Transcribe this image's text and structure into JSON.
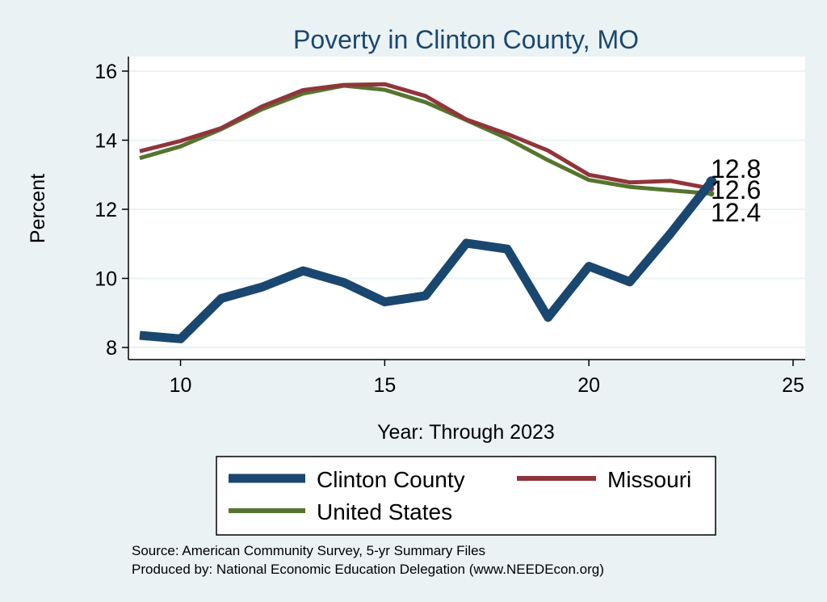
{
  "chart_data": {
    "type": "line",
    "title": "Poverty in Clinton County, MO",
    "xlabel": "Year: Through 2023",
    "ylabel": "Percent",
    "xlim": [
      9,
      25
    ],
    "ylim": [
      8,
      16
    ],
    "xticks": [
      10,
      15,
      20,
      25
    ],
    "yticks": [
      8,
      10,
      12,
      14,
      16
    ],
    "grid": true,
    "legend_position": "bottom",
    "x": [
      9,
      10,
      11,
      12,
      13,
      14,
      15,
      16,
      17,
      18,
      19,
      20,
      21,
      22,
      23
    ],
    "series": [
      {
        "name": "Clinton County",
        "color": "#1a476f",
        "values": [
          8.35,
          8.25,
          9.42,
          9.75,
          10.22,
          9.88,
          9.32,
          9.5,
          11.02,
          10.85,
          8.87,
          10.35,
          9.9,
          11.3,
          12.8
        ]
      },
      {
        "name": "Missouri",
        "color": "#90353b",
        "values": [
          13.68,
          13.98,
          14.35,
          14.98,
          15.45,
          15.6,
          15.62,
          15.28,
          14.6,
          14.18,
          13.7,
          13.0,
          12.78,
          12.82,
          12.6
        ]
      },
      {
        "name": "United States",
        "color": "#55752f",
        "values": [
          13.48,
          13.82,
          14.32,
          14.9,
          15.35,
          15.58,
          15.46,
          15.1,
          14.58,
          14.05,
          13.42,
          12.85,
          12.65,
          12.55,
          12.45
        ]
      }
    ],
    "end_labels": [
      "12.8",
      "12.6",
      "12.4"
    ],
    "source_lines": [
      "Source: American Community Survey, 5-yr Summary Files",
      "Produced by: National Economic Education Delegation (www.NEEDEcon.org)"
    ]
  },
  "colors": {
    "background": "#eaf2f3",
    "plot_background": "#ffffff",
    "title": "#1a476f",
    "grid": "#eaf2f3"
  }
}
